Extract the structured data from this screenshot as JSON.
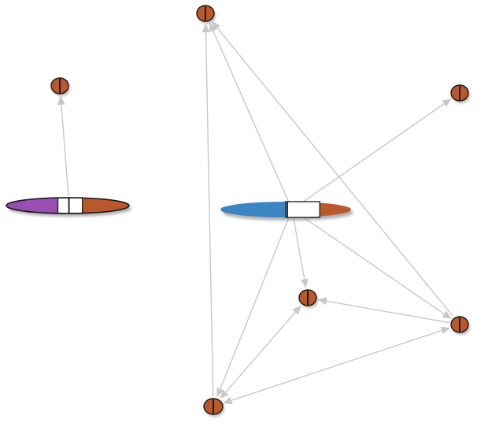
{
  "graph": {
    "colors": {
      "edge": "#c8c8c8",
      "node_fill": "#b9592b",
      "node_outline": "#1a1a1a",
      "node_divider": "#1a1a1a",
      "shadow": "#7f7f7f",
      "segment_white": "#ffffff",
      "segment_purple": "#9a4eb0",
      "segment_blue": "#3b86c2",
      "segment_orange": "#b9592b"
    },
    "nodes": [
      {
        "id": "n-top-center",
        "type": "small"
      },
      {
        "id": "n-left-upper",
        "type": "small"
      },
      {
        "id": "n-right-upper",
        "type": "small"
      },
      {
        "id": "n-left-hub",
        "type": "pill",
        "segments": [
          "purple",
          "white",
          "orange"
        ],
        "outlined": true
      },
      {
        "id": "n-center-hub",
        "type": "pill",
        "segments": [
          "blue",
          "white",
          "orange"
        ],
        "outlined": false
      },
      {
        "id": "n-center-lower",
        "type": "small"
      },
      {
        "id": "n-right-lower",
        "type": "small"
      },
      {
        "id": "n-bottom",
        "type": "small"
      }
    ],
    "edges": [
      {
        "from": "n-left-hub",
        "to": "n-left-upper",
        "arrow": "end"
      },
      {
        "from": "n-center-hub",
        "to": "n-top-center",
        "arrow": "end"
      },
      {
        "from": "n-center-hub",
        "to": "n-right-upper",
        "arrow": "end"
      },
      {
        "from": "n-center-hub",
        "to": "n-center-lower",
        "arrow": "end"
      },
      {
        "from": "n-center-hub",
        "to": "n-bottom",
        "arrow": "end"
      },
      {
        "from": "n-center-hub",
        "to": "n-right-lower",
        "arrow": "end"
      },
      {
        "from": "n-right-lower",
        "to": "n-top-center",
        "arrow": "end"
      },
      {
        "from": "n-bottom",
        "to": "n-top-center",
        "arrow": "end"
      },
      {
        "from": "n-right-lower",
        "to": "n-center-lower",
        "arrow": "end"
      },
      {
        "from": "n-bottom",
        "to": "n-center-lower",
        "arrow": "both"
      },
      {
        "from": "n-bottom",
        "to": "n-right-lower",
        "arrow": "both"
      }
    ]
  }
}
